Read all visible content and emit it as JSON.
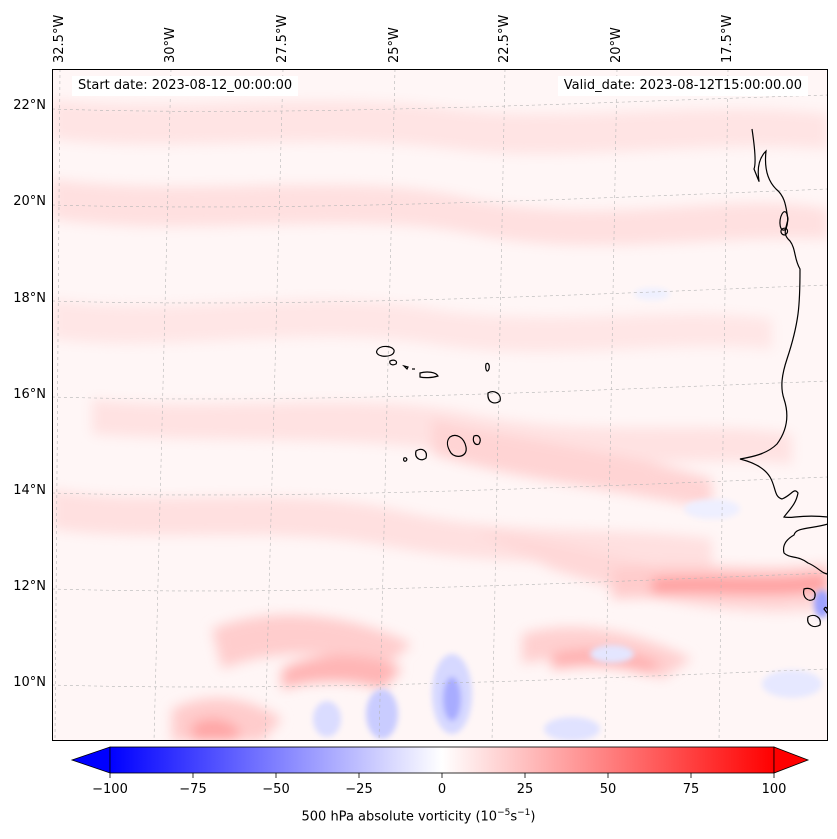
{
  "map": {
    "lon_labels": [
      "32.5°W",
      "30°W",
      "27.5°W",
      "25°W",
      "22.5°W",
      "20°W",
      "17.5°W"
    ],
    "lat_labels": [
      "22°N",
      "20°N",
      "18°N",
      "16°N",
      "14°N",
      "12°N",
      "10°N"
    ],
    "start_date": "Start date: 2023-08-12_00:00:00",
    "valid_date": "Valid_date: 2023-08-12T15:00:00.00",
    "field": "500 hPa absolute vorticity",
    "colormap": "bwr"
  },
  "colorbar": {
    "ticks": [
      "−100",
      "−75",
      "−50",
      "−25",
      "0",
      "25",
      "50",
      "75",
      "100"
    ],
    "tick_values": [
      -100,
      -75,
      -50,
      -25,
      0,
      25,
      50,
      75,
      100
    ],
    "range": [
      -100,
      100
    ],
    "label_text": "500 hPa absolute vorticity (10",
    "exp1": "−5",
    "mid": "s",
    "exp2": "−1",
    "close": ")",
    "low_color": "#0000ff",
    "mid_color": "#ffffff",
    "high_color": "#ff0000"
  }
}
